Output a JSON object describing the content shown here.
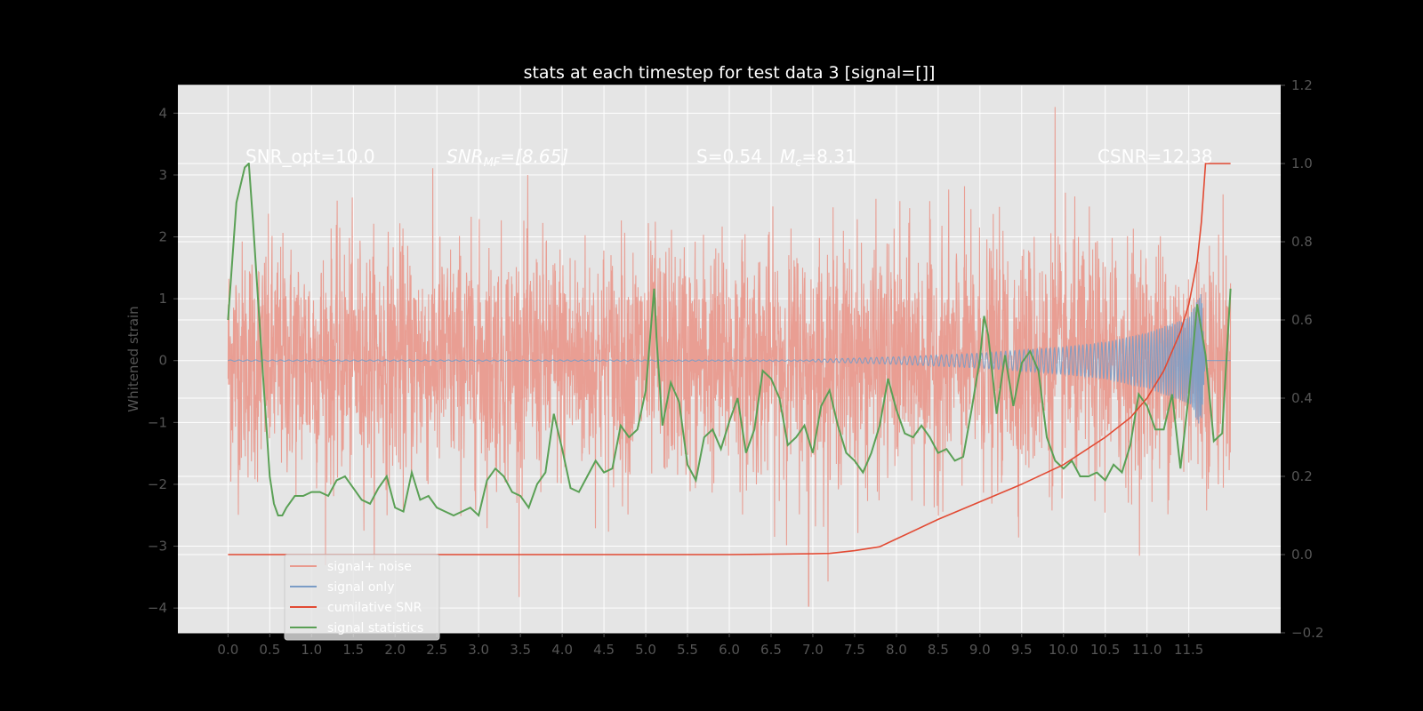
{
  "chart_data": {
    "type": "line",
    "title": "stats at each timestep for test data 3 [signal=[]]",
    "ylabel": "Whitened strain",
    "ylabel_right": "",
    "xlim": [
      -0.6,
      12.6
    ],
    "ylim": [
      -4.4,
      4.45
    ],
    "ylim_right": [
      -0.2,
      1.2
    ],
    "xticks": [
      "0.0",
      "0.5",
      "1.0",
      "1.5",
      "2.0",
      "2.5",
      "3.0",
      "3.5",
      "4.0",
      "4.5",
      "5.0",
      "5.5",
      "6.0",
      "6.5",
      "7.0",
      "7.5",
      "8.0",
      "8.5",
      "9.0",
      "9.5",
      "10.0",
      "10.5",
      "11.0",
      "11.5"
    ],
    "yticks_left": [
      "−4",
      "−3",
      "−2",
      "−1",
      "0",
      "1",
      "2",
      "3",
      "4"
    ],
    "yticks_right": [
      "−0.2",
      "0.0",
      "0.2",
      "0.4",
      "0.6",
      "0.8",
      "1.0",
      "1.2"
    ],
    "grid": true,
    "legend_position": "lower-left",
    "annotations": {
      "snr_opt": "SNR_opt=10.0",
      "snr_mf_prefix": "SNR",
      "snr_mf_sub": "MF",
      "snr_mf_suffix": "=[8.65]",
      "s_text": "S=0.54",
      "mc_prefix": "M",
      "mc_sub": "c",
      "mc_suffix": "=8.31",
      "csnr": "CSNR=12.38"
    },
    "series": [
      {
        "name": "signal+ noise",
        "color": "#e24a33",
        "axis": "left",
        "kind": "noise",
        "x_range": [
          0.0,
          12.0
        ],
        "std": 0.95,
        "extremes": {
          "max": 4.1,
          "min": -3.97
        }
      },
      {
        "name": "signal only",
        "color": "#7a9cc6",
        "axis": "left",
        "kind": "chirp",
        "x_range": [
          0.0,
          12.0
        ],
        "envelope": [
          [
            7.0,
            0.02
          ],
          [
            8.0,
            0.06
          ],
          [
            9.0,
            0.12
          ],
          [
            10.0,
            0.22
          ],
          [
            10.5,
            0.3
          ],
          [
            11.0,
            0.45
          ],
          [
            11.5,
            0.7
          ],
          [
            11.65,
            1.1
          ],
          [
            11.7,
            0.0
          ]
        ]
      },
      {
        "name": "cumilative SNR",
        "color": "#e24a33",
        "axis": "right",
        "kind": "line",
        "x": [
          0.0,
          1.0,
          2.0,
          3.0,
          4.0,
          5.0,
          6.0,
          7.0,
          7.2,
          7.5,
          7.8,
          8.0,
          8.5,
          9.0,
          9.5,
          10.0,
          10.5,
          10.8,
          11.0,
          11.2,
          11.4,
          11.5,
          11.6,
          11.65,
          11.7,
          11.8,
          12.0
        ],
        "y": [
          0.0,
          0.0,
          0.0,
          0.0,
          0.0,
          0.0,
          0.0,
          0.002,
          0.003,
          0.01,
          0.02,
          0.04,
          0.09,
          0.135,
          0.18,
          0.23,
          0.3,
          0.35,
          0.4,
          0.47,
          0.57,
          0.64,
          0.75,
          0.85,
          1.0,
          1.0,
          1.0
        ]
      },
      {
        "name": "signal statistics",
        "color": "#5aa055",
        "axis": "right",
        "kind": "line",
        "x": [
          0.0,
          0.1,
          0.2,
          0.25,
          0.3,
          0.4,
          0.5,
          0.55,
          0.6,
          0.65,
          0.7,
          0.8,
          0.9,
          1.0,
          1.1,
          1.2,
          1.3,
          1.4,
          1.5,
          1.6,
          1.7,
          1.8,
          1.9,
          2.0,
          2.1,
          2.2,
          2.3,
          2.4,
          2.5,
          2.6,
          2.7,
          2.8,
          2.9,
          3.0,
          3.1,
          3.2,
          3.3,
          3.4,
          3.5,
          3.6,
          3.7,
          3.8,
          3.9,
          4.0,
          4.1,
          4.2,
          4.3,
          4.4,
          4.5,
          4.6,
          4.7,
          4.8,
          4.9,
          5.0,
          5.1,
          5.13,
          5.2,
          5.3,
          5.4,
          5.5,
          5.6,
          5.7,
          5.8,
          5.9,
          6.0,
          6.1,
          6.2,
          6.3,
          6.4,
          6.5,
          6.6,
          6.7,
          6.8,
          6.9,
          7.0,
          7.1,
          7.2,
          7.3,
          7.4,
          7.5,
          7.6,
          7.7,
          7.8,
          7.9,
          8.0,
          8.1,
          8.2,
          8.3,
          8.4,
          8.5,
          8.6,
          8.7,
          8.8,
          8.9,
          9.0,
          9.05,
          9.1,
          9.2,
          9.3,
          9.4,
          9.5,
          9.6,
          9.7,
          9.8,
          9.9,
          10.0,
          10.1,
          10.2,
          10.3,
          10.4,
          10.5,
          10.6,
          10.7,
          10.8,
          10.9,
          11.0,
          11.1,
          11.2,
          11.3,
          11.4,
          11.5,
          11.6,
          11.7,
          11.8,
          11.9,
          12.0
        ],
        "y": [
          0.6,
          0.9,
          0.99,
          1.0,
          0.85,
          0.52,
          0.2,
          0.13,
          0.1,
          0.1,
          0.12,
          0.15,
          0.15,
          0.16,
          0.16,
          0.15,
          0.19,
          0.2,
          0.17,
          0.14,
          0.13,
          0.17,
          0.2,
          0.12,
          0.11,
          0.21,
          0.14,
          0.15,
          0.12,
          0.11,
          0.1,
          0.11,
          0.12,
          0.1,
          0.19,
          0.22,
          0.2,
          0.16,
          0.15,
          0.12,
          0.18,
          0.21,
          0.36,
          0.27,
          0.17,
          0.16,
          0.2,
          0.24,
          0.21,
          0.22,
          0.33,
          0.3,
          0.32,
          0.42,
          0.68,
          0.55,
          0.33,
          0.44,
          0.39,
          0.23,
          0.19,
          0.3,
          0.32,
          0.27,
          0.34,
          0.4,
          0.26,
          0.32,
          0.47,
          0.45,
          0.4,
          0.28,
          0.3,
          0.33,
          0.26,
          0.38,
          0.42,
          0.33,
          0.26,
          0.24,
          0.21,
          0.26,
          0.33,
          0.45,
          0.37,
          0.31,
          0.3,
          0.33,
          0.3,
          0.26,
          0.27,
          0.24,
          0.25,
          0.37,
          0.5,
          0.61,
          0.56,
          0.36,
          0.51,
          0.38,
          0.49,
          0.52,
          0.47,
          0.3,
          0.24,
          0.22,
          0.24,
          0.2,
          0.2,
          0.21,
          0.19,
          0.23,
          0.21,
          0.28,
          0.41,
          0.38,
          0.32,
          0.32,
          0.41,
          0.22,
          0.41,
          0.64,
          0.51,
          0.29,
          0.31,
          0.68
        ]
      }
    ]
  }
}
